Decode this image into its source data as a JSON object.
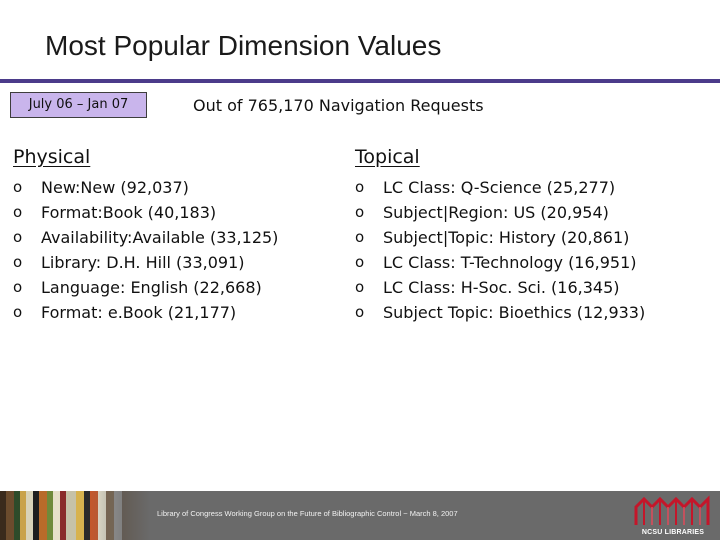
{
  "slide": {
    "title": "Most Popular Dimension Values",
    "date_range": "July 06 – Jan 07",
    "subtitle": "Out of 765,170 Navigation Requests"
  },
  "physical": {
    "heading": "Physical",
    "items": [
      {
        "label": "New:New (92,037)"
      },
      {
        "label": "Format:Book (40,183)"
      },
      {
        "label": "Availability:Available (33,125)"
      },
      {
        "label": "Library: D.H. Hill (33,091)"
      },
      {
        "label": "Language: English (22,668)"
      },
      {
        "label": "Format: e.Book (21,177)"
      }
    ]
  },
  "topical": {
    "heading": "Topical",
    "items": [
      {
        "label": "LC Class: Q-Science (25,277)"
      },
      {
        "label": "Subject|Region: US (20,954)"
      },
      {
        "label": "Subject|Topic: History (20,861)"
      },
      {
        "label": "LC Class: T-Technology (16,951)"
      },
      {
        "label": "LC Class: H-Soc. Sci. (16,345)"
      },
      {
        "label": "Subject Topic: Bioethics (12,933)"
      }
    ]
  },
  "bullet_glyph": "o",
  "footer": {
    "text": "Library of Congress Working Group on the Future of Bibliographic Control ~ March 8, 2007",
    "logo_text": "NCSU LIBRARIES"
  },
  "colors": {
    "title_rule": "#4b3b8a",
    "date_badge_bg": "#c9b5ec",
    "footer_bg": "#6a6a6a",
    "logo_red": "#c4162a"
  }
}
